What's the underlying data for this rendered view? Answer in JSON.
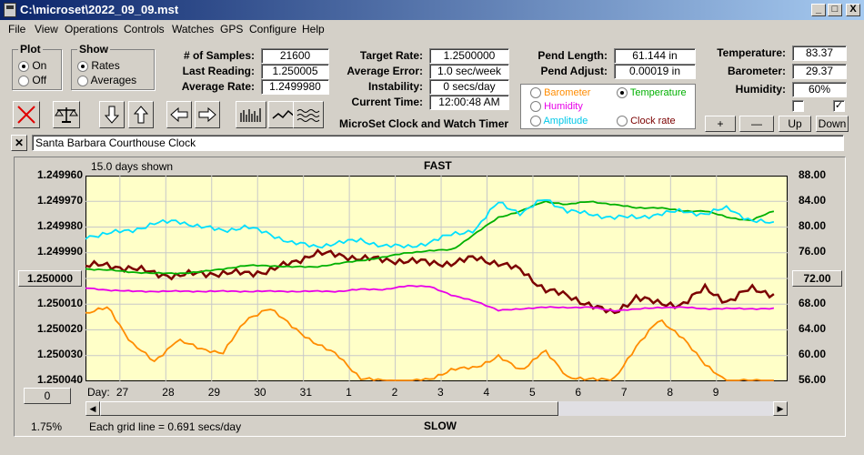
{
  "window": {
    "title": "C:\\microset\\2022_09_09.mst",
    "min": "_",
    "max": "□",
    "close": "X"
  },
  "menu": [
    "File",
    "View",
    "Operations",
    "Controls",
    "Watches",
    "GPS",
    "Configure",
    "Help"
  ],
  "plot": {
    "legend": "Plot",
    "on": "On",
    "off": "Off",
    "selected": "On"
  },
  "show": {
    "legend": "Show",
    "rates": "Rates",
    "averages": "Averages",
    "selected": "Rates"
  },
  "stats": {
    "samples_label": "# of Samples:",
    "samples": "21600",
    "last_label": "Last Reading:",
    "last": "1.250005",
    "avg_label": "Average Rate:",
    "avg": "1.2499980",
    "target_label": "Target Rate:",
    "target": "1.2500000",
    "avgerr_label": "Average Error:",
    "avgerr": "1.0 sec/week",
    "instab_label": "Instability:",
    "instab": "0 secs/day",
    "time_label": "Current Time:",
    "time": "12:00:48 AM",
    "pendlen_label": "Pend Length:",
    "pendlen": "61.144 in",
    "pendadj_label": "Pend Adjust:",
    "pendadj": "0.00019 in",
    "temp_label": "Temperature:",
    "temp": "83.37",
    "baro_label": "Barometer:",
    "baro": "29.37",
    "hum_label": "Humidity:",
    "hum": "60%"
  },
  "subtitle": "MicroSet Clock and Watch Timer",
  "overlay": {
    "barometer": "Barometer",
    "temperature": "Temperature",
    "humidity": "Humidity",
    "amplitude": "Amplitude",
    "clockrate": "Clock rate",
    "selected": "Temperature"
  },
  "adjust": {
    "plus": "+",
    "minus": "—",
    "up": "Up",
    "down": "Down"
  },
  "clock_name": "Santa Barbara Courthouse Clock",
  "chart_labels": {
    "days_shown": "15.0 days shown",
    "fast": "FAST",
    "slow": "SLOW",
    "grid_note": "Each grid line = 0.691 secs/day",
    "percent": "1.75%",
    "day_label": "Day:",
    "offset_btn": "0",
    "center_rate": "1.250000",
    "center_temp": "72.00"
  },
  "colors": {
    "rate": "#7b0000",
    "temperature": "#00b000",
    "humidity": "#e800e8",
    "barometer": "#ff8c00",
    "amplitude": "#00e0ff",
    "plot_bg": "#ffffc8"
  },
  "chart_data": {
    "type": "line",
    "y_left_ticks": [
      "1.249960",
      "1.249970",
      "1.249980",
      "1.249990",
      "1.250000",
      "1.250010",
      "1.250020",
      "1.250030",
      "1.250040"
    ],
    "y_right_ticks": [
      "88.00",
      "84.00",
      "80.00",
      "76.00",
      "72.00",
      "68.00",
      "64.00",
      "60.00",
      "56.00"
    ],
    "x_ticks": [
      "27",
      "28",
      "29",
      "30",
      "31",
      "1",
      "2",
      "3",
      "4",
      "5",
      "6",
      "7",
      "8",
      "9"
    ],
    "ylim_rate": [
      1.24996,
      1.25004
    ],
    "ylim_temp": [
      56,
      88
    ],
    "series": [
      {
        "name": "Clock rate",
        "color": "#7b0000",
        "x": [
          26.0,
          26.5,
          27.0,
          27.5,
          28.0,
          28.5,
          29.0,
          29.5,
          30.0,
          30.5,
          31.0,
          31.5,
          32.0,
          32.5,
          33.0,
          33.5,
          34.0,
          34.5,
          35.0,
          35.5,
          36.0,
          36.5,
          37.0,
          37.5,
          38.0,
          38.5,
          39.0,
          39.5,
          40.0,
          40.5,
          41.0
        ],
        "values": [
          1.249995,
          1.249995,
          1.249996,
          1.249998,
          1.249999,
          1.249998,
          1.249998,
          1.249998,
          1.249997,
          1.249994,
          1.24999,
          1.249991,
          1.249992,
          1.249993,
          1.249993,
          1.249994,
          1.249994,
          1.249992,
          1.249994,
          1.249997,
          1.250004,
          1.250007,
          1.25001,
          1.250014,
          1.250007,
          1.25001,
          1.25001,
          1.250004,
          1.250009,
          1.250004,
          1.250006
        ]
      },
      {
        "name": "Temperature",
        "color": "#00b000",
        "x": [
          26.0,
          26.5,
          27.0,
          27.5,
          28.0,
          28.5,
          29.0,
          29.5,
          30.0,
          30.5,
          31.0,
          31.5,
          32.0,
          32.5,
          33.0,
          33.5,
          34.0,
          34.5,
          35.0,
          35.5,
          36.0,
          36.5,
          37.0,
          37.5,
          38.0,
          38.5,
          39.0,
          39.5,
          40.0,
          40.5,
          41.0
        ],
        "values": [
          73.5,
          73.3,
          73.0,
          72.8,
          72.8,
          73.0,
          73.5,
          74.0,
          74.0,
          73.8,
          73.8,
          74.3,
          74.8,
          75.3,
          76.0,
          76.3,
          76.5,
          79.0,
          81.5,
          82.5,
          84.0,
          83.5,
          84.0,
          83.5,
          83.0,
          83.0,
          82.5,
          82.5,
          81.5,
          81.0,
          82.5
        ]
      },
      {
        "name": "Humidity",
        "color": "#e800e8",
        "x": [
          26.0,
          26.5,
          27.0,
          27.5,
          28.0,
          28.5,
          29.0,
          29.5,
          30.0,
          30.5,
          31.0,
          31.5,
          32.0,
          32.5,
          33.0,
          33.5,
          34.0,
          34.5,
          35.0,
          35.5,
          36.0,
          36.5,
          37.0,
          37.5,
          38.0,
          38.5,
          39.0,
          39.5,
          40.0,
          40.5,
          41.0
        ],
        "values": [
          70.5,
          70.2,
          70.0,
          70.0,
          70.0,
          70.0,
          70.0,
          70.0,
          70.0,
          70.0,
          70.0,
          70.0,
          70.3,
          70.3,
          70.8,
          70.8,
          69.3,
          68.5,
          67.0,
          67.3,
          67.5,
          67.5,
          67.5,
          67.0,
          67.2,
          67.5,
          67.5,
          67.3,
          67.3,
          67.3,
          67.3
        ]
      },
      {
        "name": "Barometer",
        "color": "#ff8c00",
        "x": [
          26.0,
          26.5,
          27.0,
          27.5,
          28.0,
          28.5,
          29.0,
          29.5,
          30.0,
          30.5,
          31.0,
          31.5,
          32.0,
          32.5,
          33.0,
          33.5,
          34.0,
          34.5,
          35.0,
          35.5,
          36.0,
          36.5,
          37.0,
          37.5,
          38.0,
          38.5,
          39.0,
          39.5,
          40.0,
          40.5,
          41.0
        ],
        "values": [
          66.5,
          67.5,
          62.0,
          59.0,
          62.5,
          61.0,
          60.5,
          65.5,
          67.5,
          64.5,
          62.0,
          60.0,
          56.5,
          56.0,
          56.0,
          56.2,
          58.0,
          58.0,
          60.0,
          57.5,
          61.0,
          56.5,
          56.5,
          56.0,
          61.5,
          65.5,
          63.0,
          58.5,
          56.0,
          56.0,
          56.0
        ]
      },
      {
        "name": "Amplitude",
        "color": "#00e0ff",
        "x": [
          26.0,
          26.5,
          27.0,
          27.5,
          28.0,
          28.5,
          29.0,
          29.5,
          30.0,
          30.5,
          31.0,
          31.5,
          32.0,
          32.5,
          33.0,
          33.5,
          34.0,
          34.5,
          35.0,
          35.5,
          36.0,
          36.5,
          37.0,
          37.5,
          38.0,
          38.5,
          39.0,
          39.5,
          40.0,
          40.5,
          41.0
        ],
        "values": [
          78.5,
          79.0,
          79.5,
          80.5,
          81.0,
          80.0,
          79.5,
          80.0,
          79.0,
          77.5,
          77.0,
          77.5,
          78.0,
          77.0,
          77.0,
          77.5,
          79.0,
          79.5,
          84.0,
          82.0,
          84.5,
          82.5,
          82.0,
          81.5,
          81.5,
          82.0,
          82.5,
          82.0,
          83.0,
          81.0,
          80.5
        ]
      }
    ]
  }
}
